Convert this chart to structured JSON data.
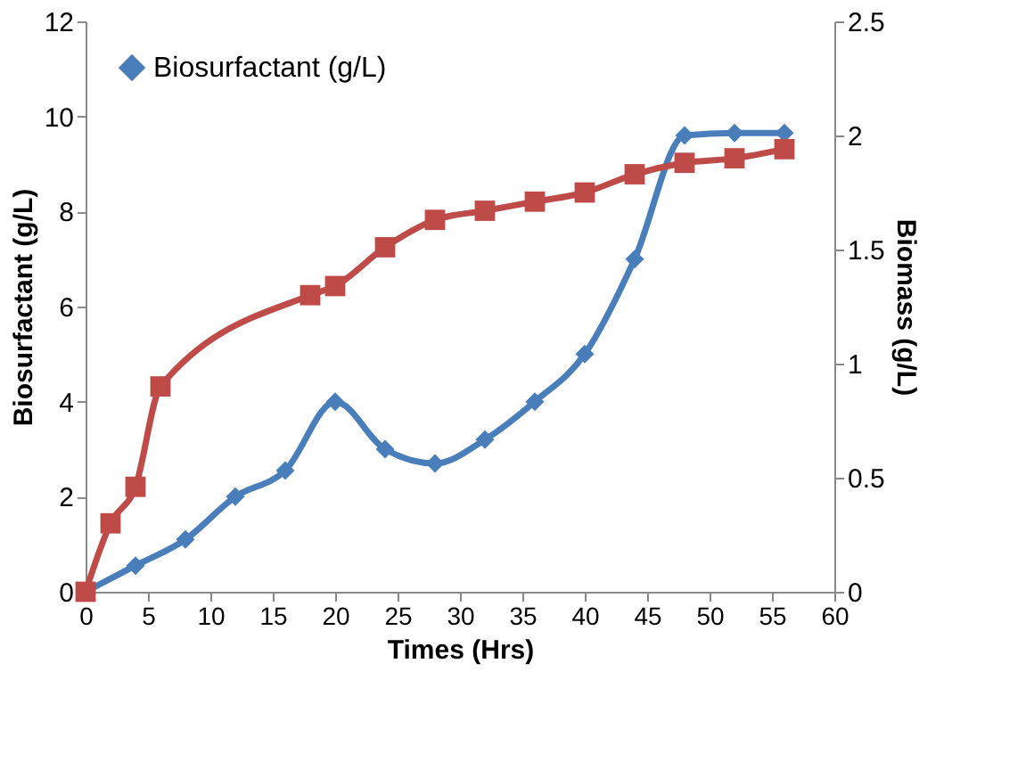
{
  "chart_data": {
    "type": "line",
    "xlabel": "Times (Hrs)",
    "ylabel": "Biosurfactant (g/L)",
    "y2label": "Biomass (g/L)",
    "xlim": [
      0,
      60
    ],
    "xticks": [
      0,
      5,
      10,
      15,
      20,
      25,
      30,
      35,
      40,
      45,
      50,
      55,
      60
    ],
    "ylim": [
      0,
      12
    ],
    "yticks": [
      0,
      2,
      4,
      6,
      8,
      10,
      12
    ],
    "y2lim": [
      0,
      2.5
    ],
    "y2ticks": [
      0,
      0.5,
      1,
      1.5,
      2,
      2.5
    ],
    "grid": false,
    "legend": "top left",
    "series": [
      {
        "name": "Biosurfactant (g/L)",
        "color": "#4a7ebb",
        "marker": "diamond",
        "x": [
          0,
          4,
          8,
          12,
          16,
          20,
          24,
          28,
          32,
          36,
          40,
          44,
          48,
          52,
          56
        ],
        "values": [
          0,
          0.55,
          1.1,
          2.0,
          2.55,
          4.0,
          3.0,
          2.7,
          3.2,
          4.0,
          5.0,
          7.0,
          9.6,
          9.65,
          9.65
        ]
      },
      {
        "color": "#be4b48",
        "marker": "square",
        "axis": "y2",
        "x": [
          0,
          2,
          4,
          6,
          18,
          20,
          24,
          28,
          32,
          36,
          40,
          44,
          48,
          52,
          56
        ],
        "values": [
          0,
          0.3,
          0.46,
          0.9,
          1.3,
          1.34,
          1.51,
          1.63,
          1.67,
          1.71,
          1.75,
          1.83,
          1.88,
          1.9,
          1.94
        ]
      }
    ]
  }
}
